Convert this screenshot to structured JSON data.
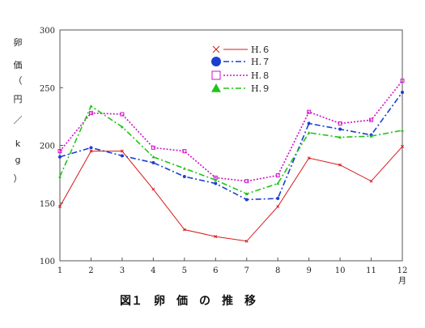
{
  "chart_data": {
    "type": "line",
    "title": "図１　卵　価　の　推　移",
    "ylabel": "卵価（円／kg）",
    "xlabel": "",
    "x": [
      "1",
      "2",
      "3",
      "4",
      "5",
      "6",
      "7",
      "8",
      "9",
      "10",
      "11",
      "12"
    ],
    "x_unit_label": "月",
    "ylim": [
      100,
      300
    ],
    "yticks": [
      100,
      150,
      200,
      250,
      300
    ],
    "grid": false,
    "legend_position": "top-center",
    "series": [
      {
        "name": "H.６",
        "color": "#d81818",
        "dash": "solid",
        "marker": "x",
        "legend_marker": "x",
        "values": [
          147,
          195,
          195,
          162,
          127,
          121,
          117,
          147,
          189,
          183,
          169,
          199
        ]
      },
      {
        "name": "H.７",
        "color": "#1a3fd0",
        "dash": "dashdot",
        "marker": "circle",
        "legend_marker": "circle",
        "values": [
          190,
          198,
          191,
          185,
          173,
          167,
          153,
          154,
          219,
          214,
          209,
          246
        ]
      },
      {
        "name": "H.８",
        "color": "#d010c8",
        "dash": "dot",
        "marker": "square",
        "legend_marker": "square",
        "values": [
          195,
          228,
          227,
          198,
          195,
          172,
          169,
          174,
          229,
          219,
          222,
          256
        ]
      },
      {
        "name": "H.９",
        "color": "#22c41a",
        "dash": "dashdot",
        "marker": "triangle",
        "legend_marker": "triangle",
        "values": [
          173,
          234,
          216,
          190,
          180,
          170,
          158,
          167,
          211,
          207,
          208,
          213
        ]
      }
    ]
  }
}
